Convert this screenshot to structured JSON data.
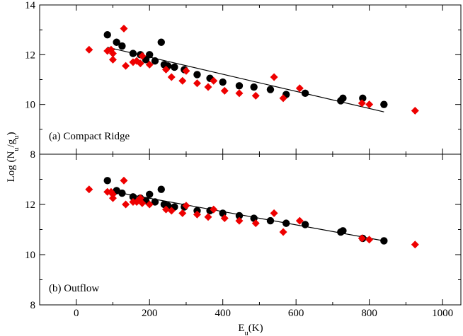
{
  "chart_data": [
    {
      "type": "scatter",
      "panel_label": "(a) Compact Ridge",
      "xlabel": "E_u(K)",
      "ylabel": "Log (N_u/g_u)",
      "xlim": [
        -100,
        1050
      ],
      "ylim": [
        8,
        14
      ],
      "xticks": [
        "0",
        "200",
        "400",
        "600",
        "800",
        "1000"
      ],
      "yticks": [
        "8",
        "10",
        "12",
        "14"
      ],
      "series": [
        {
          "name": "black-circles",
          "color": "#000000",
          "marker": "circle",
          "x": [
            85,
            110,
            125,
            155,
            175,
            190,
            200,
            215,
            232,
            240,
            250,
            268,
            295,
            330,
            365,
            400,
            445,
            485,
            530,
            573,
            625,
            722,
            728,
            782,
            840
          ],
          "y": [
            12.8,
            12.5,
            12.35,
            12.05,
            12.0,
            11.8,
            12.0,
            11.75,
            12.5,
            11.6,
            11.55,
            11.5,
            11.4,
            11.2,
            11.05,
            10.9,
            10.75,
            10.7,
            10.6,
            10.4,
            10.45,
            10.15,
            10.25,
            10.25,
            10.0
          ]
        },
        {
          "name": "red-diamonds",
          "color": "#ee0000",
          "marker": "diamond",
          "x": [
            35,
            85,
            95,
            100,
            100,
            130,
            135,
            155,
            165,
            175,
            180,
            200,
            245,
            260,
            290,
            300,
            330,
            360,
            375,
            405,
            445,
            490,
            540,
            565,
            610,
            780,
            800,
            925
          ],
          "y": [
            12.2,
            12.15,
            12.2,
            12.05,
            11.8,
            13.05,
            11.55,
            11.7,
            11.75,
            11.65,
            11.95,
            11.6,
            11.4,
            11.1,
            10.95,
            11.35,
            10.85,
            10.7,
            10.95,
            10.55,
            10.45,
            10.35,
            11.1,
            10.25,
            10.65,
            10.05,
            10.0,
            9.75
          ]
        }
      ],
      "fit_line": {
        "x": [
          85,
          840
        ],
        "y": [
          12.3,
          9.7
        ]
      }
    },
    {
      "type": "scatter",
      "panel_label": "(b) Outflow",
      "xlabel": "E_u(K)",
      "ylabel": "Log (N_u/g_u)",
      "xlim": [
        -100,
        1050
      ],
      "ylim": [
        8,
        14
      ],
      "xticks": [
        "0",
        "200",
        "400",
        "600",
        "800",
        "1000"
      ],
      "yticks": [
        "8",
        "10",
        "12"
      ],
      "series": [
        {
          "name": "black-circles",
          "color": "#000000",
          "marker": "circle",
          "x": [
            85,
            110,
            125,
            155,
            175,
            190,
            200,
            215,
            232,
            240,
            250,
            268,
            295,
            330,
            365,
            400,
            445,
            485,
            530,
            573,
            625,
            722,
            728,
            782,
            840
          ],
          "y": [
            12.95,
            12.55,
            12.45,
            12.3,
            12.25,
            12.15,
            12.4,
            12.1,
            12.6,
            12.0,
            11.95,
            11.9,
            11.9,
            11.75,
            11.75,
            11.65,
            11.55,
            11.45,
            11.35,
            11.25,
            11.2,
            10.9,
            10.95,
            10.65,
            10.55
          ]
        },
        {
          "name": "red-diamonds",
          "color": "#ee0000",
          "marker": "diamond",
          "x": [
            35,
            85,
            95,
            100,
            100,
            130,
            135,
            155,
            165,
            175,
            180,
            200,
            245,
            260,
            290,
            300,
            330,
            360,
            375,
            405,
            445,
            490,
            540,
            565,
            610,
            780,
            800,
            925
          ],
          "y": [
            12.6,
            12.5,
            12.5,
            12.4,
            12.25,
            12.95,
            12.0,
            12.1,
            12.1,
            12.25,
            12.05,
            12.0,
            11.8,
            11.75,
            11.65,
            11.95,
            11.6,
            11.5,
            11.8,
            11.45,
            11.35,
            11.25,
            11.65,
            10.9,
            11.35,
            10.65,
            10.6,
            10.4
          ]
        }
      ],
      "fit_line": {
        "x": [
          85,
          840
        ],
        "y": [
          12.55,
          10.55
        ]
      }
    }
  ]
}
